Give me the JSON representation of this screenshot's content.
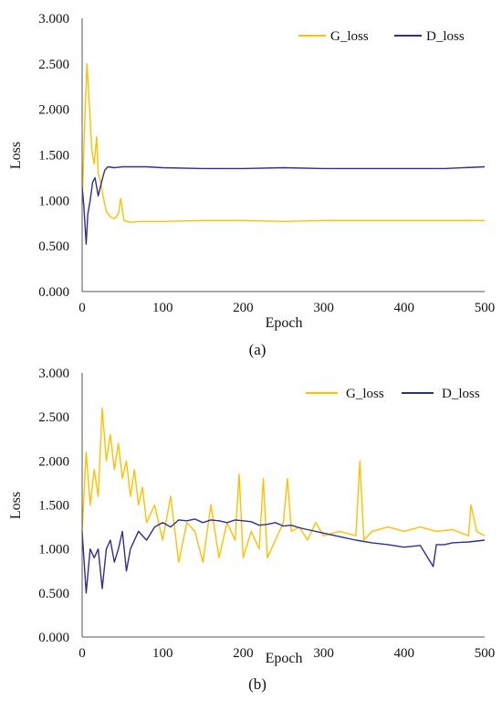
{
  "figure": {
    "panel_labels": [
      "(a)",
      "(b)"
    ]
  },
  "colors": {
    "G_loss": "#FFC000",
    "D_loss": "#2E2E99",
    "axis": "#555555"
  },
  "chart_data": [
    {
      "type": "line",
      "panel": "(a)",
      "xlabel": "Epoch",
      "ylabel": "Loss",
      "xlim": [
        0,
        500
      ],
      "ylim": [
        0,
        3
      ],
      "xticks": [
        "0",
        "100",
        "200",
        "300",
        "400",
        "500"
      ],
      "yticks": [
        "0.000",
        "0.500",
        "1.000",
        "1.500",
        "2.000",
        "2.500",
        "3.000"
      ],
      "grid": false,
      "legend": "top-right",
      "series": [
        {
          "name": "G_loss",
          "x": [
            0,
            3,
            6,
            9,
            12,
            15,
            18,
            20,
            23,
            26,
            30,
            35,
            40,
            45,
            48,
            52,
            60,
            70,
            80,
            100,
            150,
            200,
            250,
            300,
            350,
            400,
            450,
            500
          ],
          "values": [
            0.95,
            1.8,
            2.5,
            2.05,
            1.55,
            1.4,
            1.7,
            1.3,
            1.2,
            1.05,
            0.88,
            0.82,
            0.8,
            0.85,
            1.02,
            0.78,
            0.76,
            0.77,
            0.77,
            0.77,
            0.78,
            0.78,
            0.77,
            0.78,
            0.78,
            0.78,
            0.78,
            0.78
          ]
        },
        {
          "name": "D_loss",
          "x": [
            0,
            2,
            5,
            7,
            10,
            13,
            16,
            20,
            24,
            28,
            32,
            40,
            50,
            60,
            80,
            100,
            150,
            200,
            250,
            300,
            350,
            400,
            450,
            500
          ],
          "values": [
            1.15,
            0.95,
            0.52,
            0.85,
            1.0,
            1.2,
            1.25,
            1.05,
            1.2,
            1.33,
            1.37,
            1.36,
            1.37,
            1.37,
            1.37,
            1.36,
            1.35,
            1.35,
            1.36,
            1.35,
            1.35,
            1.35,
            1.35,
            1.37
          ]
        }
      ]
    },
    {
      "type": "line",
      "panel": "(b)",
      "xlabel": "Epoch",
      "ylabel": "Loss",
      "xlim": [
        0,
        500
      ],
      "ylim": [
        0,
        3
      ],
      "xticks": [
        "0",
        "100",
        "200",
        "300",
        "400",
        "500"
      ],
      "yticks": [
        "0.000",
        "0.500",
        "1.000",
        "1.500",
        "2.000",
        "2.500",
        "3.000"
      ],
      "grid": false,
      "legend": "top-right",
      "series": [
        {
          "name": "G_loss",
          "x": [
            0,
            5,
            10,
            15,
            20,
            25,
            30,
            35,
            40,
            45,
            50,
            55,
            60,
            65,
            70,
            75,
            80,
            90,
            100,
            110,
            120,
            130,
            140,
            150,
            160,
            170,
            180,
            190,
            195,
            200,
            210,
            220,
            225,
            230,
            240,
            250,
            255,
            260,
            270,
            280,
            290,
            300,
            320,
            340,
            345,
            350,
            360,
            380,
            400,
            420,
            440,
            460,
            480,
            483,
            490,
            500
          ],
          "values": [
            1.2,
            2.1,
            1.5,
            1.9,
            1.6,
            2.6,
            2.0,
            2.3,
            1.9,
            2.2,
            1.8,
            2.0,
            1.6,
            1.9,
            1.5,
            1.7,
            1.3,
            1.5,
            1.1,
            1.6,
            0.85,
            1.3,
            1.2,
            0.85,
            1.5,
            0.9,
            1.3,
            1.1,
            1.85,
            0.9,
            1.2,
            1.0,
            1.8,
            0.9,
            1.1,
            1.3,
            1.8,
            1.2,
            1.25,
            1.1,
            1.3,
            1.15,
            1.2,
            1.15,
            2.0,
            1.1,
            1.2,
            1.25,
            1.2,
            1.25,
            1.2,
            1.22,
            1.15,
            1.5,
            1.2,
            1.15
          ]
        },
        {
          "name": "D_loss",
          "x": [
            0,
            5,
            10,
            15,
            20,
            25,
            30,
            35,
            40,
            45,
            50,
            55,
            60,
            70,
            80,
            90,
            100,
            110,
            120,
            130,
            140,
            150,
            160,
            170,
            180,
            190,
            200,
            210,
            220,
            230,
            240,
            250,
            260,
            270,
            280,
            300,
            320,
            340,
            360,
            380,
            400,
            420,
            436,
            440,
            450,
            460,
            480,
            500
          ],
          "values": [
            1.2,
            0.5,
            1.0,
            0.9,
            1.0,
            0.55,
            1.0,
            1.1,
            0.85,
            1.0,
            1.2,
            0.75,
            1.0,
            1.2,
            1.1,
            1.25,
            1.3,
            1.25,
            1.33,
            1.32,
            1.34,
            1.3,
            1.33,
            1.32,
            1.3,
            1.33,
            1.32,
            1.31,
            1.27,
            1.28,
            1.3,
            1.26,
            1.27,
            1.24,
            1.22,
            1.18,
            1.14,
            1.1,
            1.07,
            1.05,
            1.02,
            1.04,
            0.8,
            1.05,
            1.05,
            1.07,
            1.08,
            1.1
          ]
        }
      ]
    }
  ]
}
